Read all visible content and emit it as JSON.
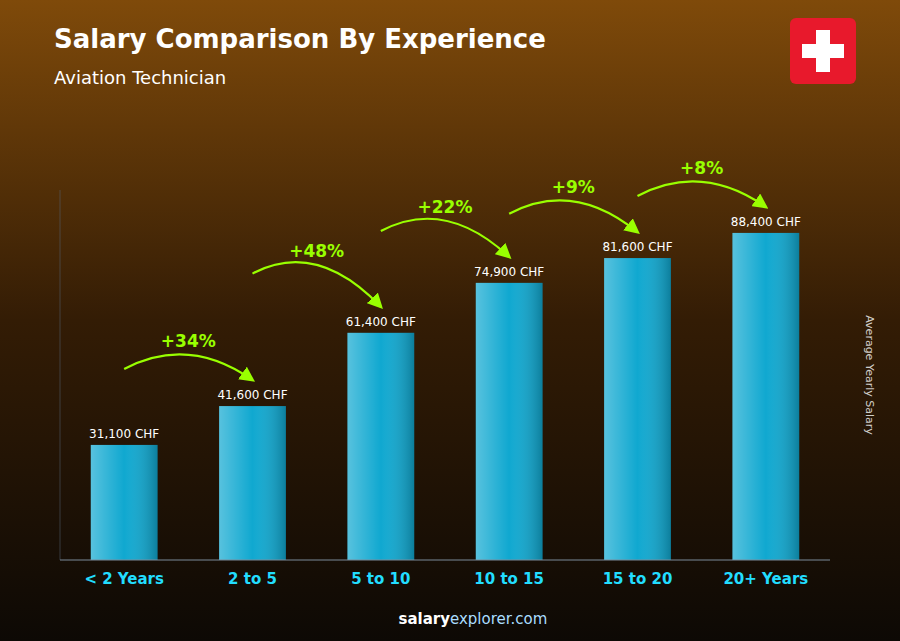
{
  "chart_data": {
    "type": "bar",
    "title": "Salary Comparison By Experience",
    "subtitle": "Aviation Technician",
    "y_label": "Average Yearly Salary",
    "categories": [
      "< 2 Years",
      "2 to 5",
      "5 to 10",
      "10 to 15",
      "15 to 20",
      "20+ Years"
    ],
    "values": [
      31100,
      41600,
      61400,
      74900,
      81600,
      88400
    ],
    "value_labels": [
      "31,100 CHF",
      "41,600 CHF",
      "61,400 CHF",
      "74,900 CHF",
      "81,600 CHF",
      "88,400 CHF"
    ],
    "data_labels": true,
    "annotations": [
      "+34%",
      "+48%",
      "+22%",
      "+9%",
      "+8%"
    ],
    "footer": [
      "salary",
      "explorer.com"
    ],
    "color": "#10a8d0",
    "ylim": [
      0,
      100000
    ],
    "tick_labels": "x",
    "grid": false
  }
}
